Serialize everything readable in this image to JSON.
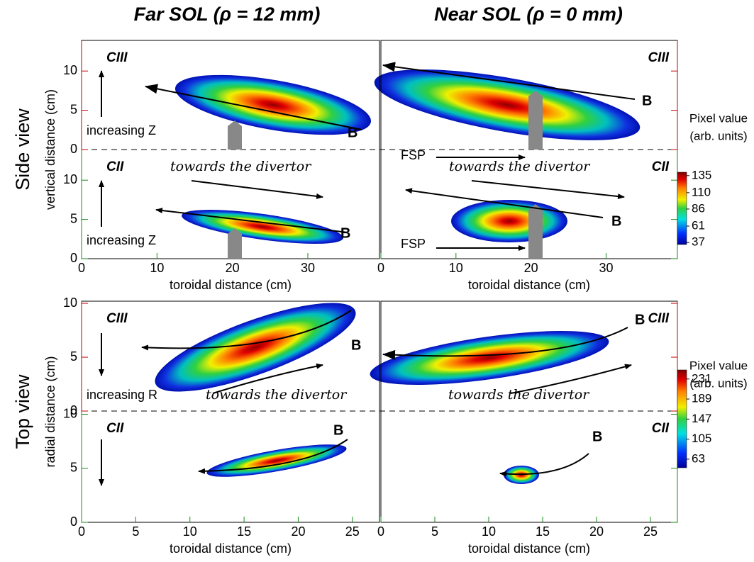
{
  "column_titles": [
    "Far SOL (ρ = 12 mm)",
    "Near SOL (ρ = 0 mm)"
  ],
  "chart_data": [
    {
      "type": "image",
      "row_title": "Side view",
      "xlabel": "toroidal distance (cm)",
      "ylabel": "vertical distance (cm)",
      "xlim": [
        0,
        39.5
      ],
      "xticks": [
        0,
        10,
        20,
        30
      ],
      "ylim_upper": [
        0,
        13.9
      ],
      "yticks_upper": [
        0,
        5,
        10
      ],
      "ylim_lower": [
        0,
        13.9
      ],
      "yticks_lower": [
        0,
        5,
        10
      ],
      "colorbar_title": "Pixel value",
      "colorbar_units": "(arb. units)",
      "clim": [
        34,
        140
      ],
      "cticks": [
        135,
        110,
        86,
        61,
        37
      ],
      "panels": [
        {
          "upper_label": "CIII",
          "lower_label": "CII",
          "annotations": [
            "increasing Z",
            "B",
            "towards the divertor",
            "increasing Z",
            "B"
          ]
        },
        {
          "upper_label": "CIII",
          "lower_label": "CII",
          "annotations": [
            "B",
            "FSP",
            "towards the divertor",
            "B",
            "FSP"
          ]
        }
      ]
    },
    {
      "type": "image",
      "row_title": "Top view",
      "xlabel": "toroidal distance (cm)",
      "ylabel": "radial distance (cm)",
      "xlim": [
        0,
        27.5
      ],
      "xticks": [
        0,
        5,
        10,
        15,
        20,
        25
      ],
      "ylim_upper": [
        0,
        10.2
      ],
      "yticks_upper": [
        0,
        5,
        10
      ],
      "ylim_lower": [
        0,
        10.3
      ],
      "yticks_lower": [
        0,
        5,
        10
      ],
      "colorbar_title": "Pixel value",
      "colorbar_units": "(arb. units)",
      "clim": [
        45,
        250
      ],
      "cticks": [
        231,
        189,
        147,
        105,
        63
      ],
      "panels": [
        {
          "upper_label": "CIII",
          "lower_label": "CII",
          "annotations": [
            "B",
            "increasing R",
            "towards the divertor",
            "B"
          ]
        },
        {
          "upper_label": "CIII",
          "lower_label": "CII",
          "annotations": [
            "B",
            "towards the divertor",
            "B"
          ]
        }
      ]
    }
  ]
}
